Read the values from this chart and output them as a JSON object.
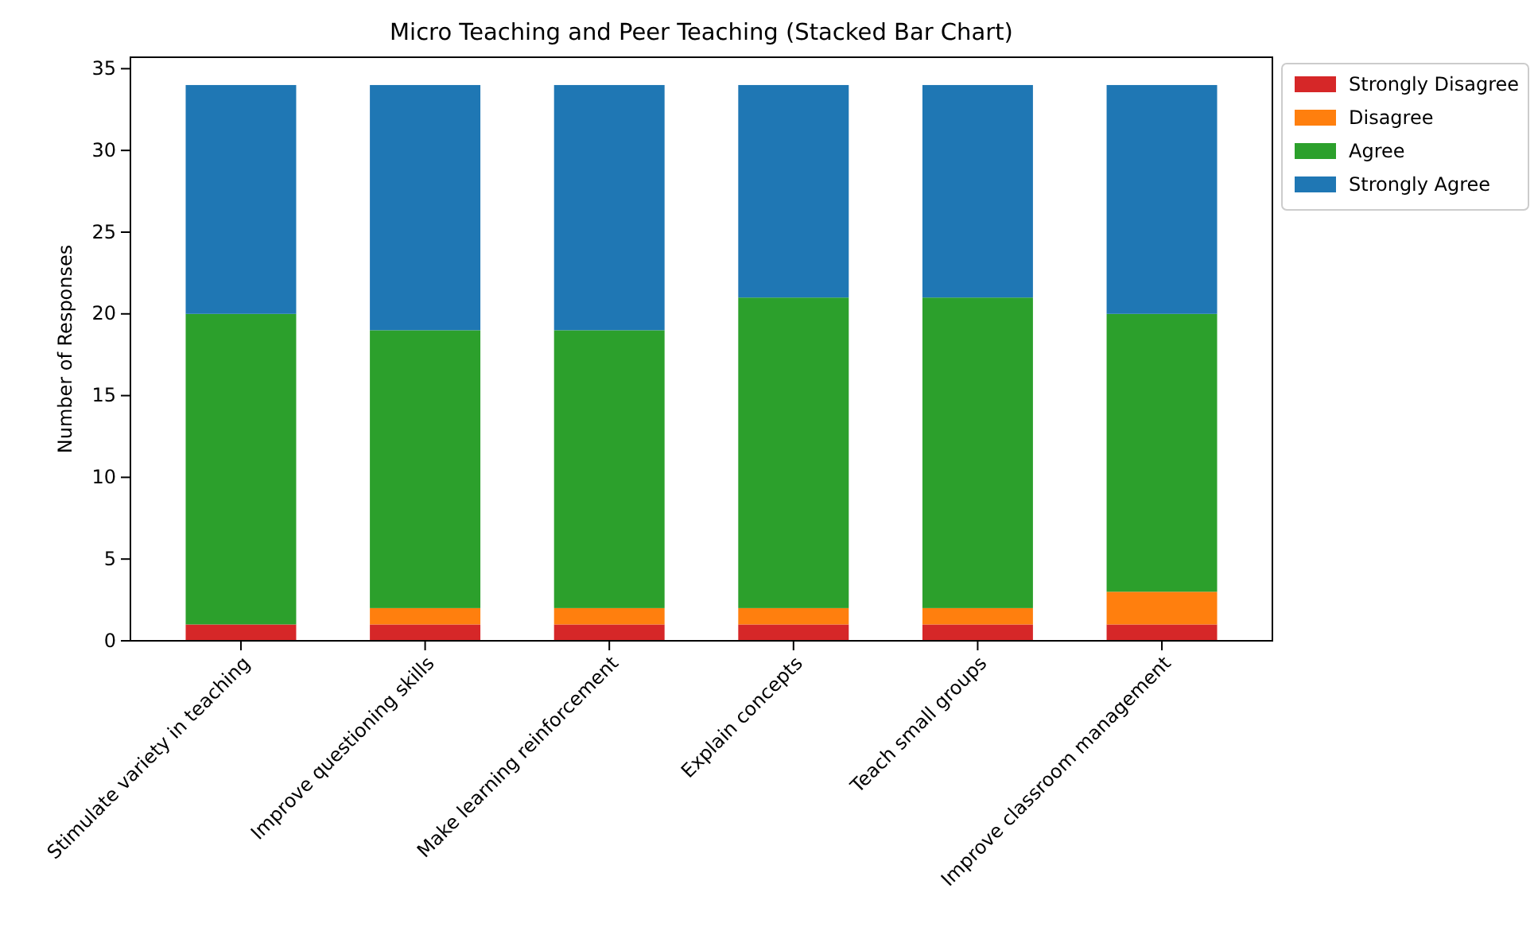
{
  "chart_data": {
    "type": "bar",
    "title": "Micro Teaching and Peer Teaching (Stacked Bar Chart)",
    "ylabel": "Number of Responses",
    "categories": [
      "Stimulate variety in teaching",
      "Improve questioning skills",
      "Make learning reinforcement",
      "Explain concepts",
      "Teach small groups",
      "Improve classroom management"
    ],
    "stacked": true,
    "series": [
      {
        "name": "Strongly Disagree",
        "color": "#d62728",
        "values": [
          1,
          1,
          1,
          1,
          1,
          1
        ]
      },
      {
        "name": "Disagree",
        "color": "#ff7f0e",
        "values": [
          0,
          1,
          1,
          1,
          1,
          2
        ]
      },
      {
        "name": "Agree",
        "color": "#2ca02c",
        "values": [
          19,
          17,
          17,
          19,
          19,
          17
        ]
      },
      {
        "name": "Strongly Agree",
        "color": "#1f77b4",
        "values": [
          14,
          15,
          15,
          13,
          13,
          14
        ]
      }
    ],
    "ylim": [
      0,
      35.7
    ],
    "yticks": [
      0,
      5,
      10,
      15,
      20,
      25,
      30,
      35
    ],
    "legend": "top right"
  }
}
